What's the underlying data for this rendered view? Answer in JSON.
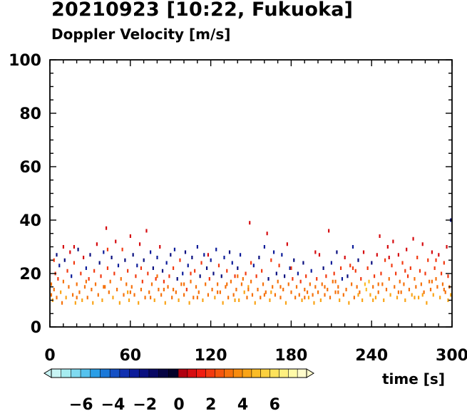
{
  "chart_data": {
    "type": "scatter",
    "title": "20210923 [10:22, Fukuoka]",
    "subtitle": "Doppler Velocity [m/s]",
    "xlabel": "time [s]",
    "ylabel": "",
    "xlim": [
      0,
      300
    ],
    "ylim": [
      0,
      100
    ],
    "xticks": [
      "0",
      "60",
      "120",
      "180",
      "240",
      "300"
    ],
    "yticks": [
      "0",
      "20",
      "40",
      "60",
      "80",
      "100"
    ],
    "grid": false,
    "colorbar": {
      "range": [
        -8,
        8
      ],
      "ticks": [
        "−6",
        "−4",
        "−2",
        "0",
        "2",
        "4",
        "6"
      ],
      "colors_negative": [
        "#c8f4f4",
        "#a6ecf0",
        "#7fdaf0",
        "#55c2ee",
        "#2a9ee6",
        "#1a78d8",
        "#1450c4",
        "#1030b0",
        "#0c1c9a",
        "#0a1080",
        "#080864",
        "#060444",
        "#04022a"
      ],
      "colors_positive": [
        "#b00010",
        "#d60c10",
        "#f01c10",
        "#f23a10",
        "#f4560e",
        "#f6720c",
        "#f88c0e",
        "#faa416",
        "#fbbc26",
        "#fcd03e",
        "#fde25c",
        "#fef080",
        "#fffaa8",
        "#fffccc"
      ]
    },
    "points": [
      [
        1,
        12,
        3
      ],
      [
        1,
        16,
        3
      ],
      [
        2,
        10,
        4
      ],
      [
        3,
        14,
        3
      ],
      [
        4,
        20,
        2
      ],
      [
        5,
        27,
        -2
      ],
      [
        5,
        11,
        3
      ],
      [
        6,
        18,
        2
      ],
      [
        7,
        23,
        -3
      ],
      [
        8,
        13,
        4
      ],
      [
        9,
        9,
        3
      ],
      [
        10,
        30,
        1
      ],
      [
        10,
        17,
        3
      ],
      [
        11,
        25,
        -2
      ],
      [
        12,
        11,
        4
      ],
      [
        13,
        21,
        2
      ],
      [
        14,
        15,
        3
      ],
      [
        15,
        28,
        1
      ],
      [
        16,
        19,
        -3
      ],
      [
        17,
        12,
        3
      ],
      [
        18,
        24,
        2
      ],
      [
        19,
        9,
        4
      ],
      [
        20,
        16,
        3
      ],
      [
        21,
        29,
        -2
      ],
      [
        22,
        13,
        3
      ],
      [
        23,
        20,
        2
      ],
      [
        24,
        10,
        4
      ],
      [
        25,
        26,
        1
      ],
      [
        26,
        15,
        3
      ],
      [
        27,
        22,
        -3
      ],
      [
        28,
        11,
        3
      ],
      [
        29,
        18,
        2
      ],
      [
        30,
        27,
        -2
      ],
      [
        31,
        14,
        3
      ],
      [
        32,
        9,
        4
      ],
      [
        33,
        21,
        2
      ],
      [
        34,
        16,
        3
      ],
      [
        35,
        31,
        1
      ],
      [
        36,
        12,
        3
      ],
      [
        37,
        24,
        -2
      ],
      [
        38,
        19,
        2
      ],
      [
        39,
        10,
        4
      ],
      [
        40,
        28,
        -3
      ],
      [
        41,
        15,
        3
      ],
      [
        42,
        37,
        1
      ],
      [
        43,
        22,
        2
      ],
      [
        44,
        13,
        3
      ],
      [
        45,
        17,
        3
      ],
      [
        46,
        26,
        -2
      ],
      [
        47,
        11,
        4
      ],
      [
        48,
        20,
        2
      ],
      [
        49,
        32,
        1
      ],
      [
        50,
        14,
        3
      ],
      [
        51,
        23,
        -3
      ],
      [
        52,
        9,
        4
      ],
      [
        53,
        18,
        3
      ],
      [
        54,
        29,
        2
      ],
      [
        55,
        12,
        3
      ],
      [
        56,
        25,
        -2
      ],
      [
        57,
        16,
        3
      ],
      [
        58,
        21,
        2
      ],
      [
        59,
        10,
        4
      ],
      [
        60,
        34,
        1
      ],
      [
        61,
        15,
        3
      ],
      [
        62,
        27,
        -2
      ],
      [
        63,
        12,
        3
      ],
      [
        64,
        19,
        2
      ],
      [
        65,
        23,
        -3
      ],
      [
        66,
        9,
        4
      ],
      [
        67,
        31,
        1
      ],
      [
        68,
        14,
        3
      ],
      [
        69,
        17,
        2
      ],
      [
        70,
        25,
        -2
      ],
      [
        71,
        11,
        3
      ],
      [
        72,
        36,
        1
      ],
      [
        73,
        20,
        2
      ],
      [
        74,
        13,
        3
      ],
      [
        75,
        28,
        -3
      ],
      [
        76,
        16,
        3
      ],
      [
        77,
        22,
        -2
      ],
      [
        78,
        10,
        4
      ],
      [
        79,
        18,
        2
      ],
      [
        80,
        26,
        -3
      ],
      [
        81,
        14,
        3
      ],
      [
        82,
        30,
        1
      ],
      [
        83,
        12,
        3
      ],
      [
        84,
        21,
        -2
      ],
      [
        85,
        17,
        2
      ],
      [
        86,
        9,
        4
      ],
      [
        87,
        24,
        -3
      ],
      [
        88,
        15,
        3
      ],
      [
        89,
        19,
        2
      ],
      [
        90,
        27,
        -2
      ],
      [
        91,
        11,
        3
      ],
      [
        92,
        22,
        2
      ],
      [
        93,
        29,
        -3
      ],
      [
        94,
        13,
        3
      ],
      [
        95,
        18,
        -2
      ],
      [
        96,
        10,
        4
      ],
      [
        97,
        25,
        2
      ],
      [
        98,
        16,
        3
      ],
      [
        99,
        20,
        -3
      ],
      [
        100,
        12,
        3
      ],
      [
        101,
        28,
        -2
      ],
      [
        102,
        14,
        2
      ],
      [
        103,
        23,
        -3
      ],
      [
        104,
        9,
        4
      ],
      [
        105,
        17,
        3
      ],
      [
        106,
        26,
        -2
      ],
      [
        107,
        11,
        3
      ],
      [
        108,
        21,
        2
      ],
      [
        109,
        15,
        3
      ],
      [
        110,
        30,
        -3
      ],
      [
        111,
        13,
        3
      ],
      [
        112,
        19,
        -2
      ],
      [
        113,
        24,
        2
      ],
      [
        114,
        10,
        4
      ],
      [
        115,
        27,
        -3
      ],
      [
        116,
        16,
        3
      ],
      [
        117,
        22,
        -2
      ],
      [
        118,
        12,
        3
      ],
      [
        119,
        18,
        2
      ],
      [
        120,
        25,
        -3
      ],
      [
        121,
        14,
        3
      ],
      [
        122,
        20,
        -2
      ],
      [
        123,
        11,
        4
      ],
      [
        124,
        29,
        -3
      ],
      [
        125,
        16,
        3
      ],
      [
        126,
        23,
        2
      ],
      [
        127,
        13,
        3
      ],
      [
        128,
        19,
        -2
      ],
      [
        129,
        9,
        4
      ],
      [
        130,
        26,
        -3
      ],
      [
        131,
        15,
        3
      ],
      [
        132,
        21,
        2
      ],
      [
        133,
        11,
        3
      ],
      [
        134,
        28,
        -2
      ],
      [
        135,
        17,
        3
      ],
      [
        136,
        24,
        -3
      ],
      [
        137,
        12,
        3
      ],
      [
        138,
        19,
        2
      ],
      [
        139,
        14,
        3
      ],
      [
        140,
        22,
        -2
      ],
      [
        141,
        10,
        4
      ],
      [
        142,
        27,
        -3
      ],
      [
        143,
        16,
        3
      ],
      [
        144,
        18,
        3
      ],
      [
        145,
        13,
        4
      ],
      [
        146,
        20,
        2
      ],
      [
        147,
        11,
        3
      ],
      [
        148,
        15,
        4
      ],
      [
        149,
        39,
        1
      ],
      [
        150,
        17,
        3
      ],
      [
        151,
        12,
        3
      ],
      [
        152,
        23,
        -3
      ],
      [
        153,
        9,
        4
      ],
      [
        154,
        19,
        2
      ],
      [
        155,
        14,
        3
      ],
      [
        156,
        26,
        -2
      ],
      [
        157,
        11,
        3
      ],
      [
        158,
        21,
        2
      ],
      [
        159,
        16,
        3
      ],
      [
        160,
        30,
        -3
      ],
      [
        161,
        13,
        3
      ],
      [
        162,
        35,
        1
      ],
      [
        163,
        18,
        -2
      ],
      [
        164,
        10,
        4
      ],
      [
        165,
        25,
        2
      ],
      [
        166,
        15,
        3
      ],
      [
        167,
        28,
        -3
      ],
      [
        168,
        12,
        3
      ],
      [
        169,
        20,
        -2
      ],
      [
        170,
        17,
        3
      ],
      [
        171,
        23,
        2
      ],
      [
        172,
        11,
        3
      ],
      [
        173,
        27,
        -3
      ],
      [
        174,
        14,
        3
      ],
      [
        175,
        19,
        -2
      ],
      [
        176,
        9,
        4
      ],
      [
        177,
        31,
        1
      ],
      [
        178,
        16,
        3
      ],
      [
        179,
        22,
        -3
      ],
      [
        180,
        13,
        3
      ],
      [
        181,
        18,
        2
      ],
      [
        182,
        25,
        -2
      ],
      [
        183,
        11,
        3
      ],
      [
        184,
        15,
        3
      ],
      [
        185,
        20,
        -3
      ],
      [
        186,
        12,
        3
      ],
      [
        187,
        17,
        2
      ],
      [
        188,
        10,
        4
      ],
      [
        189,
        24,
        -2
      ],
      [
        190,
        14,
        3
      ],
      [
        191,
        19,
        2
      ],
      [
        192,
        13,
        3
      ],
      [
        193,
        11,
        4
      ],
      [
        194,
        16,
        3
      ],
      [
        195,
        21,
        -3
      ],
      [
        196,
        12,
        3
      ],
      [
        197,
        9,
        4
      ],
      [
        198,
        15,
        3
      ],
      [
        199,
        18,
        2
      ],
      [
        200,
        13,
        3
      ],
      [
        201,
        27,
        1
      ],
      [
        202,
        10,
        4
      ],
      [
        203,
        16,
        3
      ],
      [
        204,
        22,
        -2
      ],
      [
        205,
        12,
        3
      ],
      [
        206,
        19,
        2
      ],
      [
        207,
        14,
        3
      ],
      [
        208,
        36,
        1
      ],
      [
        209,
        11,
        3
      ],
      [
        210,
        24,
        -3
      ],
      [
        211,
        17,
        3
      ],
      [
        212,
        20,
        2
      ],
      [
        213,
        13,
        3
      ],
      [
        214,
        28,
        -2
      ],
      [
        215,
        15,
        3
      ],
      [
        216,
        10,
        4
      ],
      [
        217,
        22,
        2
      ],
      [
        218,
        18,
        -3
      ],
      [
        219,
        12,
        3
      ],
      [
        220,
        26,
        1
      ],
      [
        221,
        14,
        3
      ],
      [
        222,
        19,
        -2
      ],
      [
        223,
        9,
        4
      ],
      [
        224,
        23,
        2
      ],
      [
        225,
        16,
        3
      ],
      [
        226,
        30,
        -3
      ],
      [
        227,
        11,
        3
      ],
      [
        228,
        21,
        2
      ],
      [
        229,
        15,
        3
      ],
      [
        230,
        25,
        -2
      ],
      [
        231,
        13,
        3
      ],
      [
        232,
        18,
        2
      ],
      [
        233,
        10,
        4
      ],
      [
        234,
        28,
        1
      ],
      [
        235,
        16,
        5
      ],
      [
        236,
        14,
        5
      ],
      [
        237,
        22,
        2
      ],
      [
        238,
        17,
        5
      ],
      [
        239,
        12,
        4
      ],
      [
        240,
        24,
        -2
      ],
      [
        241,
        15,
        3
      ],
      [
        242,
        19,
        2
      ],
      [
        243,
        11,
        4
      ],
      [
        244,
        27,
        1
      ],
      [
        245,
        13,
        3
      ],
      [
        246,
        34,
        1
      ],
      [
        247,
        20,
        2
      ],
      [
        248,
        16,
        3
      ],
      [
        249,
        10,
        4
      ],
      [
        250,
        25,
        2
      ],
      [
        251,
        14,
        3
      ],
      [
        252,
        30,
        1
      ],
      [
        253,
        18,
        3
      ],
      [
        254,
        12,
        4
      ],
      [
        255,
        23,
        2
      ],
      [
        256,
        32,
        1
      ],
      [
        257,
        15,
        3
      ],
      [
        258,
        20,
        2
      ],
      [
        259,
        11,
        4
      ],
      [
        260,
        27,
        1
      ],
      [
        261,
        17,
        3
      ],
      [
        262,
        13,
        3
      ],
      [
        263,
        24,
        2
      ],
      [
        264,
        16,
        3
      ],
      [
        265,
        10,
        4
      ],
      [
        266,
        29,
        1
      ],
      [
        267,
        19,
        2
      ],
      [
        268,
        14,
        3
      ],
      [
        269,
        22,
        2
      ],
      [
        270,
        12,
        4
      ],
      [
        271,
        33,
        1
      ],
      [
        272,
        18,
        3
      ],
      [
        273,
        15,
        3
      ],
      [
        274,
        26,
        2
      ],
      [
        275,
        11,
        4
      ],
      [
        276,
        21,
        2
      ],
      [
        277,
        16,
        3
      ],
      [
        278,
        31,
        1
      ],
      [
        279,
        13,
        3
      ],
      [
        280,
        20,
        2
      ],
      [
        281,
        9,
        4
      ],
      [
        282,
        25,
        2
      ],
      [
        283,
        17,
        3
      ],
      [
        284,
        14,
        3
      ],
      [
        285,
        28,
        1
      ],
      [
        286,
        12,
        4
      ],
      [
        287,
        22,
        2
      ],
      [
        288,
        18,
        3
      ],
      [
        289,
        15,
        3
      ],
      [
        290,
        27,
        1
      ],
      [
        291,
        11,
        4
      ],
      [
        292,
        20,
        2
      ],
      [
        293,
        16,
        3
      ],
      [
        294,
        24,
        2
      ],
      [
        295,
        13,
        3
      ],
      [
        296,
        30,
        1
      ],
      [
        297,
        19,
        2
      ],
      [
        298,
        15,
        3
      ],
      [
        299,
        12,
        4
      ],
      [
        299,
        40,
        -2
      ],
      [
        3,
        25,
        2
      ],
      [
        18,
        30,
        1
      ],
      [
        27,
        17,
        3
      ],
      [
        43,
        29,
        2
      ],
      [
        58,
        13,
        4
      ],
      [
        68,
        22,
        2
      ],
      [
        80,
        19,
        3
      ],
      [
        92,
        14,
        3
      ],
      [
        105,
        20,
        2
      ],
      [
        118,
        27,
        1
      ],
      [
        132,
        16,
        3
      ],
      [
        140,
        19,
        3
      ],
      [
        150,
        24,
        2
      ],
      [
        165,
        13,
        4
      ],
      [
        180,
        22,
        2
      ],
      [
        198,
        28,
        1
      ],
      [
        213,
        17,
        3
      ],
      [
        226,
        22,
        2
      ],
      [
        241,
        10,
        4
      ],
      [
        253,
        26,
        1
      ],
      [
        265,
        21,
        2
      ],
      [
        278,
        12,
        4
      ],
      [
        288,
        25,
        2
      ],
      [
        294,
        14,
        3
      ],
      [
        20,
        11,
        3
      ],
      [
        40,
        15,
        3
      ],
      [
        60,
        13,
        3
      ],
      [
        75,
        11,
        3
      ],
      [
        85,
        14,
        3
      ],
      [
        100,
        16,
        3
      ],
      [
        110,
        11,
        3
      ],
      [
        125,
        13,
        3
      ],
      [
        138,
        10,
        4
      ],
      [
        148,
        14,
        3
      ],
      [
        160,
        12,
        3
      ],
      [
        172,
        15,
        3
      ],
      [
        190,
        11,
        3
      ],
      [
        205,
        15,
        3
      ],
      [
        215,
        13,
        3
      ],
      [
        230,
        12,
        4
      ],
      [
        245,
        16,
        3
      ],
      [
        260,
        13,
        3
      ],
      [
        272,
        11,
        4
      ],
      [
        285,
        17,
        3
      ],
      [
        297,
        10,
        4
      ]
    ]
  }
}
